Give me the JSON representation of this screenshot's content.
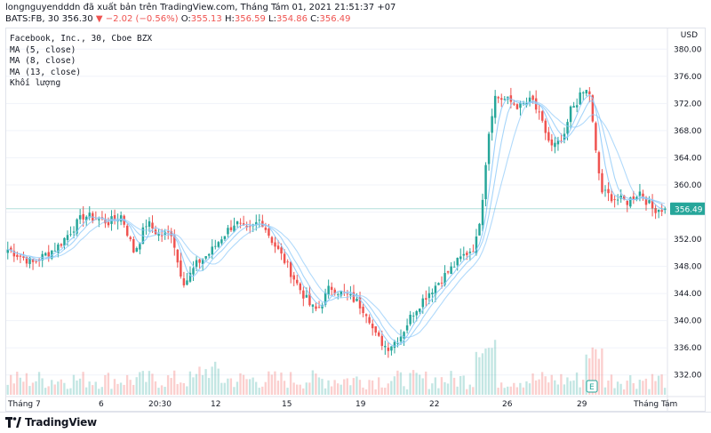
{
  "header": {
    "line1": "longnguyendddn đã xuất bản trên TradingView.com, Tháng Tám 01, 2021 21:51:37 +07",
    "symbol": "BATS:FB, 30",
    "last": "356.30",
    "change": "−2.02 (−0.56%)",
    "open_label": "O:",
    "open": "355.13",
    "high_label": "H:",
    "high": "356.59",
    "low_label": "L:",
    "low": "354.86",
    "close_label": "C:",
    "close": "356.49"
  },
  "legend": {
    "title": "Facebook, Inc., 30, Cboe BZX",
    "ma1": "MA (5, close)",
    "ma2": "MA (8, close)",
    "ma3": "MA (13, close)",
    "volume": "Khối lượng"
  },
  "currency": "USD",
  "price_label": "356.49",
  "footer": {
    "logo_text": "TradingView"
  },
  "earnings_marker": "E",
  "colors": {
    "up": "#26a69a",
    "down": "#ef5350",
    "ma": "#90caf9",
    "price_line": "#26a69a",
    "grid": "#f0f3fa"
  },
  "chart_data": {
    "type": "candlestick",
    "ylim": [
      330,
      382
    ],
    "y_ticks": [
      332,
      336,
      340,
      344,
      348,
      352,
      356,
      360,
      364,
      368,
      372,
      376,
      380
    ],
    "x_ticks": [
      "Tháng 7",
      "6",
      "20:30",
      "12",
      "15",
      "19",
      "22",
      "26",
      "29",
      "Tháng Tám"
    ],
    "current_price": 356.49,
    "close_path": [
      [
        0,
        350.5
      ],
      [
        4,
        348.5
      ],
      [
        8,
        351
      ],
      [
        12,
        355.5
      ],
      [
        16,
        354.5
      ],
      [
        18,
        355.5
      ],
      [
        20,
        350
      ],
      [
        22,
        354.5
      ],
      [
        24,
        352.5
      ],
      [
        26,
        353
      ],
      [
        27,
        348
      ],
      [
        28,
        345.5
      ],
      [
        30,
        348.5
      ],
      [
        32,
        350
      ],
      [
        34,
        352.5
      ],
      [
        36,
        354.5
      ],
      [
        38,
        353
      ],
      [
        40,
        355
      ],
      [
        42,
        351.5
      ],
      [
        44,
        348.5
      ],
      [
        46,
        345
      ],
      [
        48,
        342
      ],
      [
        49,
        341.5
      ],
      [
        51,
        345
      ],
      [
        53,
        344
      ],
      [
        55,
        343
      ],
      [
        57,
        341
      ],
      [
        58,
        338
      ],
      [
        60,
        336
      ],
      [
        62,
        337.5
      ],
      [
        64,
        341
      ],
      [
        66,
        343.5
      ],
      [
        68,
        345.5
      ],
      [
        70,
        347.5
      ],
      [
        72,
        349.5
      ],
      [
        74,
        351
      ],
      [
        75,
        357
      ],
      [
        76,
        367
      ],
      [
        77,
        373
      ],
      [
        79,
        372.5
      ],
      [
        81,
        371.5
      ],
      [
        83,
        372.5
      ],
      [
        85,
        368
      ],
      [
        86,
        365.5
      ],
      [
        88,
        366.5
      ],
      [
        89,
        371
      ],
      [
        91,
        373.5
      ],
      [
        92,
        374
      ],
      [
        93,
        365
      ],
      [
        94,
        359
      ],
      [
        96,
        358
      ],
      [
        98,
        357.5
      ],
      [
        100,
        359
      ],
      [
        102,
        356.5
      ],
      [
        104,
        356.5
      ]
    ]
  }
}
